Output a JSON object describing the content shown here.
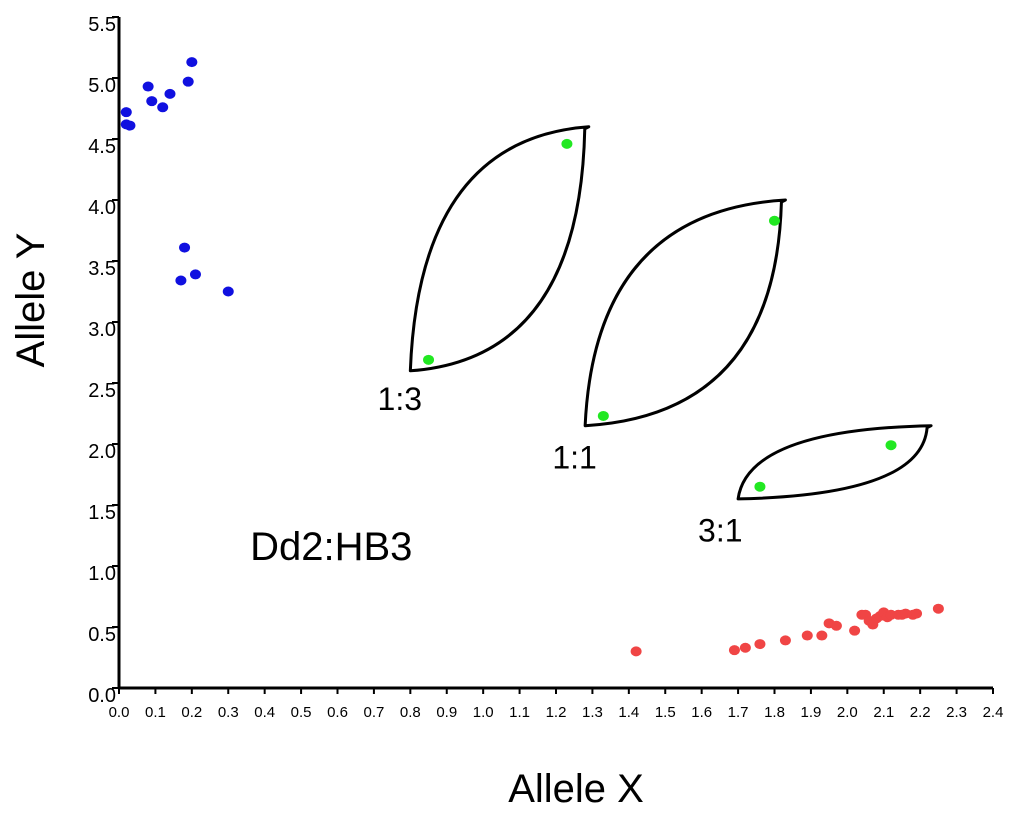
{
  "chart_data": {
    "type": "scatter",
    "xlabel": "Allele X",
    "ylabel": "Allele Y",
    "xlim": [
      0.0,
      2.4
    ],
    "ylim": [
      0.0,
      5.5
    ],
    "x_ticks": [
      "0.0",
      "0.1",
      "0.2",
      "0.3",
      "0.4",
      "0.5",
      "0.6",
      "0.7",
      "0.8",
      "0.9",
      "1.0",
      "1.1",
      "1.2",
      "1.3",
      "1.4",
      "1.5",
      "1.6",
      "1.7",
      "1.8",
      "1.9",
      "2.0",
      "2.1",
      "2.2",
      "2.3",
      "2.4"
    ],
    "y_ticks": [
      "0.0",
      "0.5",
      "1.0",
      "1.5",
      "2.0",
      "2.5",
      "3.0",
      "3.5",
      "4.0",
      "4.5",
      "5.0",
      "5.5"
    ],
    "grid": false,
    "series": [
      {
        "color": "#1010e0",
        "points": [
          [
            0.2,
            5.13
          ],
          [
            0.08,
            4.93
          ],
          [
            0.19,
            4.97
          ],
          [
            0.14,
            4.87
          ],
          [
            0.09,
            4.81
          ],
          [
            0.12,
            4.76
          ],
          [
            0.02,
            4.72
          ],
          [
            0.02,
            4.62
          ],
          [
            0.03,
            4.61
          ],
          [
            0.18,
            3.61
          ],
          [
            0.21,
            3.39
          ],
          [
            0.17,
            3.34
          ],
          [
            0.3,
            3.25
          ]
        ]
      },
      {
        "color": "#22e822",
        "points": [
          [
            1.23,
            4.46
          ],
          [
            0.85,
            2.69
          ],
          [
            1.8,
            3.83
          ],
          [
            1.33,
            2.23
          ],
          [
            2.12,
            1.99
          ],
          [
            1.76,
            1.65
          ]
        ]
      },
      {
        "color": "#f04545",
        "points": [
          [
            1.42,
            0.3
          ],
          [
            1.69,
            0.31
          ],
          [
            1.72,
            0.33
          ],
          [
            1.76,
            0.36
          ],
          [
            1.83,
            0.39
          ],
          [
            1.89,
            0.43
          ],
          [
            1.93,
            0.43
          ],
          [
            1.95,
            0.53
          ],
          [
            1.97,
            0.51
          ],
          [
            2.02,
            0.47
          ],
          [
            2.04,
            0.6
          ],
          [
            2.05,
            0.6
          ],
          [
            2.06,
            0.55
          ],
          [
            2.07,
            0.52
          ],
          [
            2.08,
            0.57
          ],
          [
            2.09,
            0.59
          ],
          [
            2.1,
            0.62
          ],
          [
            2.11,
            0.58
          ],
          [
            2.12,
            0.6
          ],
          [
            2.14,
            0.6
          ],
          [
            2.15,
            0.6
          ],
          [
            2.16,
            0.61
          ],
          [
            2.18,
            0.6
          ],
          [
            2.19,
            0.61
          ],
          [
            2.25,
            0.65
          ]
        ]
      }
    ],
    "annotations": [
      {
        "text": "Dd2:HB3",
        "x": 0.36,
        "y": 1.05,
        "size": "large"
      },
      {
        "text": "1:3",
        "x": 0.71,
        "y": 2.28,
        "size": "medium"
      },
      {
        "text": "1:1",
        "x": 1.19,
        "y": 1.8,
        "size": "medium"
      },
      {
        "text": "3:1",
        "x": 1.59,
        "y": 1.2,
        "size": "medium"
      }
    ],
    "regions": [
      {
        "label": "1:3",
        "start": [
          0.8,
          2.6
        ],
        "end": [
          1.29,
          4.6
        ]
      },
      {
        "label": "1:1",
        "start": [
          1.28,
          2.15
        ],
        "end": [
          1.83,
          4.0
        ]
      },
      {
        "label": "3:1",
        "start": [
          1.7,
          1.55
        ],
        "end": [
          2.23,
          2.15
        ]
      }
    ]
  }
}
